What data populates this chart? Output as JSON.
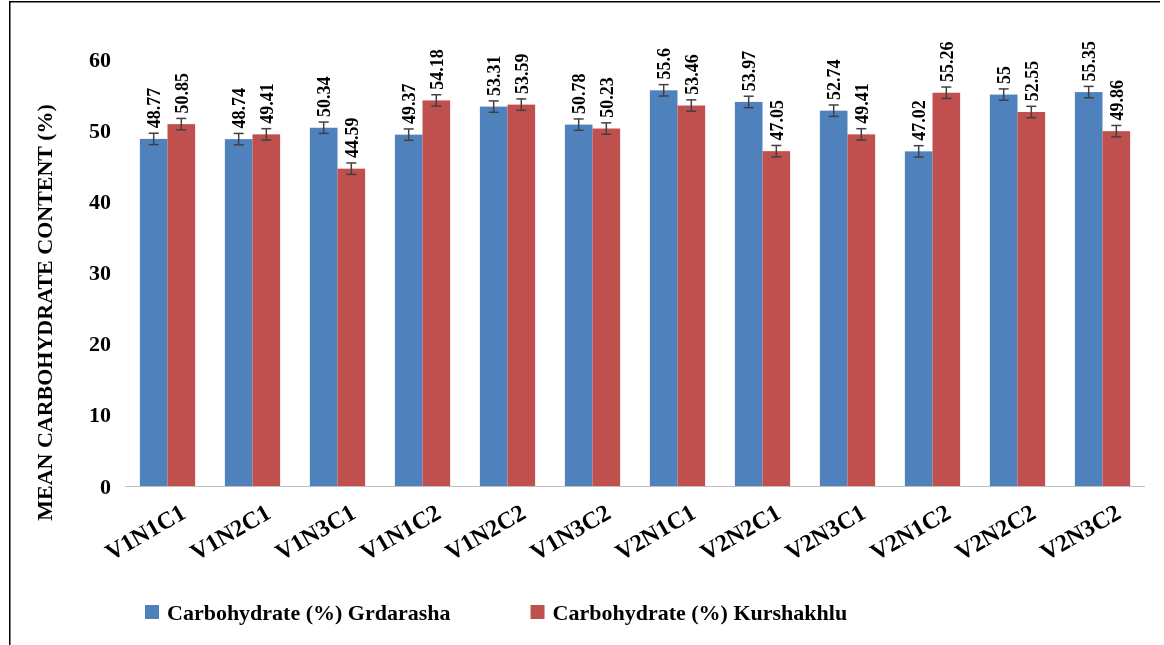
{
  "chart_data": {
    "type": "bar",
    "ylabel": "MEAN CARBOHYDRATE CONTENT (%)",
    "categories": [
      "V1N1C1",
      "V1N2C1",
      "V1N3C1",
      "V1N1C2",
      "V1N2C2",
      "V1N3C2",
      "V2N1C1",
      "V2N2C1",
      "V2N3C1",
      "V2N1C2",
      "V2N2C2",
      "V2N3C2"
    ],
    "series": [
      {
        "name": "Carbohydrate (%)  Grdarasha",
        "color": "#4f81bd",
        "values": [
          48.77,
          48.74,
          50.34,
          49.37,
          53.31,
          50.78,
          55.6,
          53.97,
          52.74,
          47.02,
          55,
          55.35
        ],
        "errors": [
          0.8,
          0.8,
          0.8,
          0.8,
          0.8,
          0.8,
          0.8,
          0.8,
          0.8,
          0.8,
          0.8,
          0.8
        ]
      },
      {
        "name": "Carbohydrate (%)  Kurshakhlu",
        "color": "#c0504d",
        "values": [
          50.85,
          49.41,
          44.59,
          54.18,
          53.59,
          50.23,
          53.46,
          47.05,
          49.41,
          55.26,
          52.55,
          49.86
        ],
        "errors": [
          0.8,
          0.8,
          0.8,
          0.8,
          0.8,
          0.8,
          0.8,
          0.8,
          0.8,
          0.8,
          0.8,
          0.8
        ]
      }
    ],
    "ylim": [
      0,
      60
    ],
    "yticks": [
      0,
      10,
      20,
      30,
      40,
      50,
      60
    ],
    "grid": false,
    "legend": "bottom",
    "data_labels": true
  }
}
